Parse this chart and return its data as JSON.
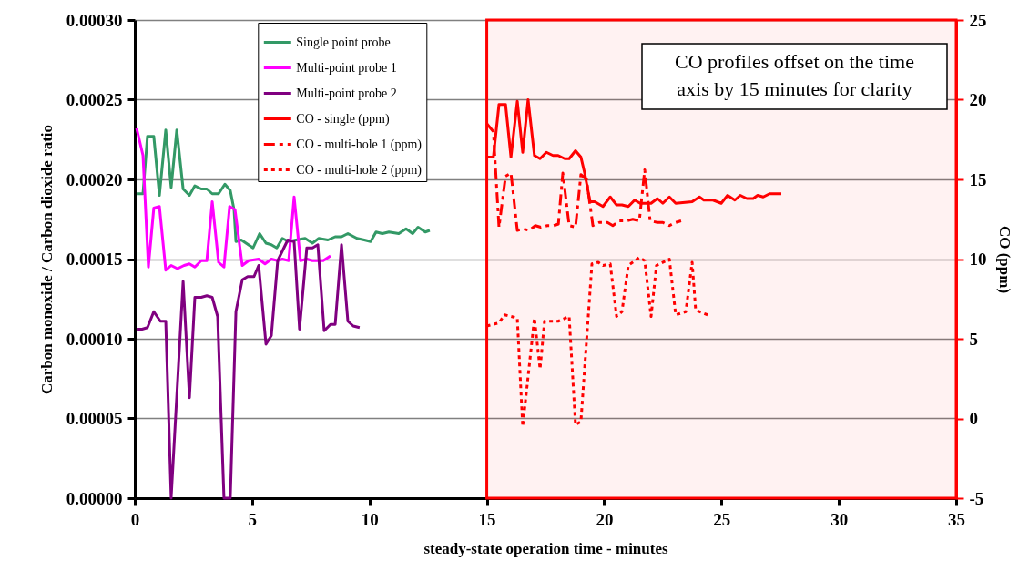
{
  "chart_data": {
    "type": "line",
    "xlabel": "steady-state operation time - minutes",
    "ylabel": "Carbon monoxide / Carbon dioxide ratio",
    "y2label": "CO (ppm)",
    "xlim": [
      0,
      35
    ],
    "xticks": [
      0,
      5,
      10,
      15,
      20,
      25,
      30,
      35
    ],
    "ylim": [
      0,
      0.0003
    ],
    "yticks": [
      {
        "value": 0,
        "label": "0.00000"
      },
      {
        "value": 5e-05,
        "label": "0.00005"
      },
      {
        "value": 0.0001,
        "label": "0.00010"
      },
      {
        "value": 0.00015,
        "label": "0.00015"
      },
      {
        "value": 0.0002,
        "label": "0.00020"
      },
      {
        "value": 0.00025,
        "label": "0.00025"
      },
      {
        "value": 0.0003,
        "label": "0.00030"
      }
    ],
    "y2lim": [
      -5,
      25
    ],
    "y2ticks": [
      -5,
      0,
      5,
      10,
      15,
      20,
      25
    ],
    "grid": "y",
    "legend": "top",
    "line_style": "solid",
    "series": [
      {
        "name": "Single point probe",
        "color": "#339966",
        "x": [
          0.08,
          0.35,
          0.54,
          0.81,
          1.05,
          1.32,
          1.55,
          1.79,
          2.06,
          2.33,
          2.56,
          2.83,
          3.07,
          3.3,
          3.57,
          3.84,
          4.07,
          4.23,
          4.31,
          4.54,
          5.04,
          5.32,
          5.59,
          5.82,
          6.05,
          6.29,
          6.56,
          6.87,
          7.26,
          7.57,
          7.84,
          8.23,
          8.54,
          8.81,
          9.08,
          9.47,
          9.78,
          10.05,
          10.28,
          10.55,
          10.83,
          11.25,
          11.56,
          11.84,
          12.07,
          12.38,
          12.57
        ],
        "values": [
          0.000191,
          0.000191,
          0.000227,
          0.000227,
          0.00019,
          0.000231,
          0.000195,
          0.000231,
          0.000194,
          0.00019,
          0.000196,
          0.000194,
          0.000194,
          0.000191,
          0.000191,
          0.000197,
          0.000193,
          0.000181,
          0.000161,
          0.000162,
          0.000157,
          0.000166,
          0.00016,
          0.000159,
          0.000157,
          0.000163,
          0.000161,
          0.000162,
          0.000163,
          0.00016,
          0.000163,
          0.000162,
          0.000164,
          0.000164,
          0.000166,
          0.000163,
          0.000162,
          0.000161,
          0.000167,
          0.000166,
          0.000167,
          0.000166,
          0.000169,
          0.000166,
          0.00017,
          0.000167,
          0.000168
        ]
      },
      {
        "name": "Multi-point probe 1",
        "color": "#ff00ff",
        "x": [
          0.08,
          0.35,
          0.58,
          0.81,
          1.05,
          1.32,
          1.55,
          1.82,
          2.1,
          2.33,
          2.56,
          2.83,
          3.07,
          3.3,
          3.57,
          3.8,
          4.04,
          4.27,
          4.58,
          4.85,
          5.28,
          5.55,
          5.82,
          6.09,
          6.29,
          6.56,
          6.79,
          7.06,
          7.33,
          7.57,
          8.03,
          8.34
        ],
        "values": [
          0.000232,
          0.000215,
          0.000145,
          0.000182,
          0.000183,
          0.000143,
          0.000146,
          0.000144,
          0.000146,
          0.000147,
          0.000145,
          0.000149,
          0.000149,
          0.000186,
          0.000148,
          0.000145,
          0.000183,
          0.000181,
          0.000146,
          0.000149,
          0.00015,
          0.000147,
          0.00015,
          0.000149,
          0.00015,
          0.000149,
          0.000189,
          0.000149,
          0.00015,
          0.000149,
          0.000149,
          0.000152
        ]
      },
      {
        "name": "Multi-point probe 2",
        "color": "#800080",
        "x": [
          0.08,
          0.31,
          0.54,
          0.81,
          1.09,
          1.32,
          1.55,
          2.06,
          2.33,
          2.56,
          2.83,
          3.07,
          3.3,
          3.53,
          3.8,
          4.07,
          4.31,
          4.58,
          4.81,
          5.08,
          5.28,
          5.59,
          5.82,
          6.09,
          6.52,
          6.79,
          7.02,
          7.33,
          7.57,
          7.8,
          8.07,
          8.34,
          8.54,
          8.81,
          9.08,
          9.31,
          9.58
        ],
        "values": [
          0.000106,
          0.000106,
          0.000107,
          0.000117,
          0.000111,
          0.000111,
          0.0,
          0.000136,
          6.3e-05,
          0.000126,
          0.000126,
          0.000127,
          0.000126,
          0.000114,
          0.0,
          0.0,
          0.000117,
          0.000137,
          0.000139,
          0.000139,
          0.000146,
          9.66e-05,
          0.000102,
          0.000149,
          0.000162,
          0.000161,
          0.000106,
          0.000157,
          0.000157,
          0.000159,
          0.000105,
          0.000109,
          0.000109,
          0.000159,
          0.000111,
          0.000108,
          0.000107
        ]
      },
      {
        "name": "CO - single (ppm)",
        "color": "#ff0000",
        "axis": "y2",
        "line_style": "solid",
        "x": [
          15,
          15.28,
          15.52,
          15.8,
          16.03,
          16.3,
          16.53,
          16.76,
          17.03,
          17.27,
          17.54,
          17.82,
          18.04,
          18.32,
          18.51,
          18.78,
          19.01,
          19.17,
          19.4,
          19.6,
          19.95,
          20.26,
          20.53,
          20.76,
          21.03,
          21.3,
          21.54,
          22,
          22.27,
          22.5,
          22.78,
          23.05,
          23.75,
          24.06,
          24.25,
          24.64,
          24.99,
          25.26,
          25.57,
          25.8,
          26.08,
          26.35,
          26.54,
          26.78,
          27.05,
          27.55
        ],
        "values": [
          16.4,
          16.4,
          19.7,
          19.7,
          16.4,
          19.9,
          16.7,
          20.0,
          16.5,
          16.3,
          16.7,
          16.5,
          16.5,
          16.3,
          16.3,
          16.8,
          16.4,
          15.4,
          13.6,
          13.6,
          13.3,
          13.9,
          13.4,
          13.4,
          13.3,
          13.7,
          13.5,
          13.5,
          13.8,
          13.5,
          13.9,
          13.5,
          13.6,
          13.9,
          13.7,
          13.7,
          13.5,
          14.0,
          13.7,
          14.0,
          13.8,
          13.8,
          14.0,
          13.9,
          14.1,
          14.1
        ]
      },
      {
        "name": "CO - multi-hole 1 (ppm)",
        "color": "#ff0000",
        "axis": "y2",
        "line_style": "dashed",
        "x": [
          15,
          15.28,
          15.52,
          15.8,
          16.03,
          16.3,
          16.53,
          16.8,
          17.07,
          17.3,
          17.58,
          17.85,
          18.05,
          18.24,
          18.51,
          18.78,
          19.01,
          19.25,
          19.52,
          19.79,
          20.14,
          20.37,
          20.64,
          20.95,
          21.22,
          21.5,
          21.73,
          21.96,
          22.27,
          22.5,
          22.78,
          23.05,
          23.28
        ],
        "values": [
          18.5,
          18.0,
          12.0,
          15.2,
          15.4,
          11.8,
          11.9,
          11.8,
          12.1,
          12.0,
          12.1,
          12.1,
          12.2,
          15.4,
          12.1,
          12.0,
          15.3,
          15.0,
          12.1,
          12.3,
          12.3,
          12.1,
          12.4,
          12.4,
          12.5,
          12.4,
          15.6,
          12.4,
          12.3,
          12.3,
          12.1,
          12.3,
          12.4
        ]
      },
      {
        "name": "CO - multi-hole 2 (ppm)",
        "color": "#ff0000",
        "axis": "y2",
        "line_style": "dotted",
        "x": [
          15,
          15.52,
          15.76,
          16.3,
          16.53,
          17.03,
          17.27,
          17.46,
          18.04,
          18.51,
          18.78,
          19.01,
          19.48,
          19.75,
          19.95,
          20.26,
          20.53,
          20.76,
          21.03,
          21.5,
          21.73,
          22,
          22.23,
          22.78,
          23.05,
          23.48,
          23.75,
          23.9,
          24.41
        ],
        "values": [
          5.8,
          6.0,
          6.5,
          6.3,
          -0.5,
          6.3,
          3.1,
          6.1,
          6.1,
          6.4,
          -0.4,
          -0.2,
          9.7,
          9.8,
          9.6,
          9.7,
          6.4,
          6.7,
          9.6,
          10.1,
          9.9,
          6.4,
          9.6,
          10.0,
          6.5,
          6.7,
          9.8,
          6.8,
          6.5
        ]
      }
    ],
    "bands": [
      {
        "axis": "x",
        "from": 15,
        "to": 35,
        "color": "#ff0000"
      }
    ],
    "annotations": [
      "CO profiles offset on the time axis by 15 minutes for clarity"
    ]
  }
}
